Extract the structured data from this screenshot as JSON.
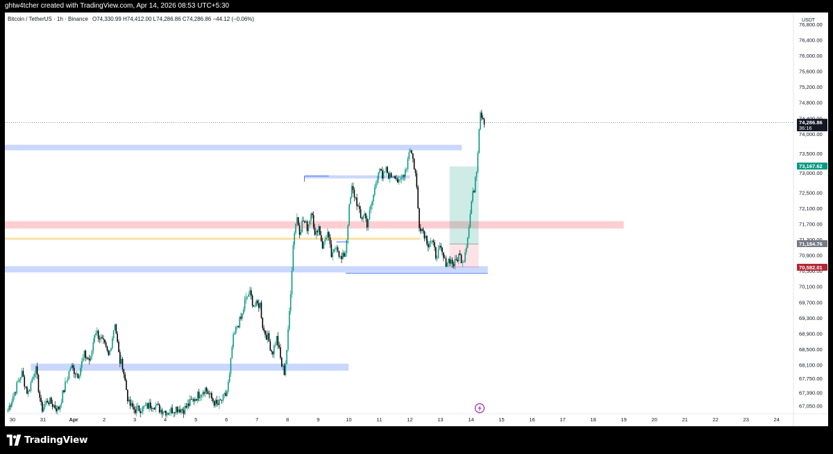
{
  "header": {
    "creator_note": "ghtw4tcher created with TradingView.com, Apr 14, 2026 08:53 UTC+5:30"
  },
  "footer": {
    "brand": "TradingView"
  },
  "chart_data": {
    "type": "candlestick",
    "title": "Bitcoin / TetherUS · 1h · Binance",
    "ohlc_label": "O74,330.99 H74,412.00 L74,286.86 C74,286.86 −44.12 (−0.06%)",
    "currency": "USDT",
    "y_axis": {
      "range": [
        66850,
        77100
      ],
      "ticks": [
        {
          "value": 76800,
          "label": "76,800.00"
        },
        {
          "value": 76400,
          "label": "76,400.00"
        },
        {
          "value": 76000,
          "label": "76,000.00"
        },
        {
          "value": 75600,
          "label": "75,600.00"
        },
        {
          "value": 75200,
          "label": "75,200.00"
        },
        {
          "value": 74800,
          "label": "74,800.00"
        },
        {
          "value": 74400,
          "label": "74,400.00"
        },
        {
          "value": 74000,
          "label": "74,000.00"
        },
        {
          "value": 73500,
          "label": "73,500.00"
        },
        {
          "value": 73000,
          "label": "73,000.00"
        },
        {
          "value": 72500,
          "label": "72,500.00"
        },
        {
          "value": 72100,
          "label": "72,100.00"
        },
        {
          "value": 71700,
          "label": "71,700.00"
        },
        {
          "value": 71300,
          "label": "71,300.00"
        },
        {
          "value": 70900,
          "label": "70,900.00"
        },
        {
          "value": 70500,
          "label": "70,500.00"
        },
        {
          "value": 70100,
          "label": "70,100.00"
        },
        {
          "value": 69700,
          "label": "69,700.00"
        },
        {
          "value": 69300,
          "label": "69,300.00"
        },
        {
          "value": 68900,
          "label": "68,900.00"
        },
        {
          "value": 68500,
          "label": "68,500.00"
        },
        {
          "value": 68100,
          "label": "68,100.00"
        },
        {
          "value": 67750,
          "label": "67,750.00"
        },
        {
          "value": 67390,
          "label": "67,390.00"
        },
        {
          "value": 67050,
          "label": "67,050.00"
        }
      ]
    },
    "x_axis": {
      "unit": "days (Mar 30 – Apr 24, 2026)",
      "range": [
        29.75,
        55.55
      ],
      "ticks": [
        {
          "day": 30,
          "label": "30"
        },
        {
          "day": 31,
          "label": "31"
        },
        {
          "day": 32,
          "label": "Apr",
          "bold": true
        },
        {
          "day": 33,
          "label": "2"
        },
        {
          "day": 34,
          "label": "3"
        },
        {
          "day": 35,
          "label": "4"
        },
        {
          "day": 36,
          "label": "5"
        },
        {
          "day": 37,
          "label": "6"
        },
        {
          "day": 38,
          "label": "7"
        },
        {
          "day": 39,
          "label": "8"
        },
        {
          "day": 40,
          "label": "9"
        },
        {
          "day": 41,
          "label": "10"
        },
        {
          "day": 42,
          "label": "11"
        },
        {
          "day": 43,
          "label": "12"
        },
        {
          "day": 44,
          "label": "13"
        },
        {
          "day": 45,
          "label": "14"
        },
        {
          "day": 46,
          "label": "15"
        },
        {
          "day": 47,
          "label": "16"
        },
        {
          "day": 48,
          "label": "17"
        },
        {
          "day": 49,
          "label": "18"
        },
        {
          "day": 50,
          "label": "19"
        },
        {
          "day": 51,
          "label": "20"
        },
        {
          "day": 52,
          "label": "21"
        },
        {
          "day": 53,
          "label": "22"
        },
        {
          "day": 54,
          "label": "23"
        },
        {
          "day": 55,
          "label": "24"
        }
      ]
    },
    "price_markers": [
      {
        "value": 74286.86,
        "label": "74,286.86",
        "sublabel": "36:16",
        "color": "#131722"
      },
      {
        "value": 73167.62,
        "label": "73,167.62",
        "color": "#089981"
      },
      {
        "value": 71184.76,
        "label": "71,184.76",
        "color": "#787b86"
      },
      {
        "value": 70582.01,
        "label": "70,582.01",
        "color": "#b22833"
      }
    ],
    "colors": {
      "up": "#089981",
      "down": "#000000",
      "background": "#ffffff"
    },
    "close_path": [
      [
        29.85,
        66950
      ],
      [
        30.3,
        67900
      ],
      [
        30.5,
        67350
      ],
      [
        30.75,
        68050
      ],
      [
        30.95,
        66950
      ],
      [
        31.15,
        67200
      ],
      [
        31.5,
        66950
      ],
      [
        31.75,
        67650
      ],
      [
        31.9,
        68050
      ],
      [
        32.15,
        67850
      ],
      [
        32.35,
        68350
      ],
      [
        32.55,
        68200
      ],
      [
        32.7,
        69000
      ],
      [
        32.85,
        68800
      ],
      [
        33.0,
        68600
      ],
      [
        33.15,
        68300
      ],
      [
        33.35,
        69200
      ],
      [
        33.5,
        68200
      ],
      [
        33.6,
        68100
      ],
      [
        33.8,
        67100
      ],
      [
        34.0,
        66950
      ],
      [
        34.3,
        67000
      ],
      [
        34.6,
        67100
      ],
      [
        34.85,
        66950
      ],
      [
        35.1,
        66900
      ],
      [
        35.35,
        67000
      ],
      [
        35.6,
        66950
      ],
      [
        35.9,
        67200
      ],
      [
        36.1,
        67350
      ],
      [
        36.3,
        67500
      ],
      [
        36.5,
        67250
      ],
      [
        36.7,
        67050
      ],
      [
        36.85,
        67200
      ],
      [
        37.0,
        67350
      ],
      [
        37.1,
        67800
      ],
      [
        37.2,
        68700
      ],
      [
        37.35,
        69100
      ],
      [
        37.5,
        69300
      ],
      [
        37.6,
        69700
      ],
      [
        37.75,
        69950
      ],
      [
        37.9,
        69600
      ],
      [
        38.1,
        69650
      ],
      [
        38.2,
        69000
      ],
      [
        38.35,
        68800
      ],
      [
        38.5,
        68400
      ],
      [
        38.65,
        68800
      ],
      [
        38.8,
        68100
      ],
      [
        38.9,
        67900
      ],
      [
        39.0,
        68700
      ],
      [
        39.1,
        70000
      ],
      [
        39.2,
        71400
      ],
      [
        39.3,
        71900
      ],
      [
        39.4,
        71500
      ],
      [
        39.5,
        71800
      ],
      [
        39.65,
        71600
      ],
      [
        39.8,
        72100
      ],
      [
        39.9,
        71300
      ],
      [
        40.0,
        71700
      ],
      [
        40.15,
        71100
      ],
      [
        40.3,
        71500
      ],
      [
        40.45,
        70800
      ],
      [
        40.6,
        71200
      ],
      [
        40.75,
        70750
      ],
      [
        40.9,
        71000
      ],
      [
        41.0,
        72000
      ],
      [
        41.1,
        72600
      ],
      [
        41.25,
        72300
      ],
      [
        41.4,
        71800
      ],
      [
        41.5,
        72000
      ],
      [
        41.6,
        71700
      ],
      [
        41.75,
        72200
      ],
      [
        41.9,
        72800
      ],
      [
        42.0,
        73200
      ],
      [
        42.1,
        72800
      ],
      [
        42.2,
        73100
      ],
      [
        42.35,
        72900
      ],
      [
        42.5,
        73000
      ],
      [
        42.65,
        72700
      ],
      [
        42.8,
        73000
      ],
      [
        42.9,
        73200
      ],
      [
        43.0,
        73700
      ],
      [
        43.1,
        73350
      ],
      [
        43.2,
        72900
      ],
      [
        43.25,
        72300
      ],
      [
        43.3,
        71700
      ],
      [
        43.45,
        71500
      ],
      [
        43.6,
        71200
      ],
      [
        43.7,
        71300
      ],
      [
        43.85,
        70900
      ],
      [
        44.0,
        71050
      ],
      [
        44.15,
        70700
      ],
      [
        44.3,
        70800
      ],
      [
        44.45,
        70650
      ],
      [
        44.6,
        70900
      ],
      [
        44.75,
        70750
      ],
      [
        44.85,
        71200
      ],
      [
        44.95,
        71700
      ],
      [
        45.0,
        72200
      ],
      [
        45.1,
        72600
      ],
      [
        45.15,
        73000
      ],
      [
        45.2,
        73200
      ],
      [
        45.25,
        74000
      ],
      [
        45.3,
        74600
      ],
      [
        45.35,
        74500
      ],
      [
        45.45,
        74300
      ]
    ],
    "horizontal_zones": [
      {
        "name": "demand-zone-top",
        "from": 29.75,
        "to": 44.7,
        "low": 73580,
        "high": 73720,
        "color": "#4f7cff"
      },
      {
        "name": "demand-zone-mid",
        "from": 39.55,
        "to": 43.0,
        "low": 72860,
        "high": 72940,
        "color": "#4f7cff"
      },
      {
        "name": "supply-zone-red",
        "from": 29.75,
        "to": 50.0,
        "low": 71580,
        "high": 71770,
        "color": "#ff5c6c"
      },
      {
        "name": "demand-zone-low",
        "from": 29.75,
        "to": 45.55,
        "low": 70460,
        "high": 70620,
        "color": "#4f7cff"
      },
      {
        "name": "demand-zone-bottom",
        "from": 30.6,
        "to": 41.0,
        "low": 67950,
        "high": 68130,
        "color": "#4f7cff"
      }
    ],
    "horizontal_lines": [
      {
        "name": "equilibrium-line",
        "from": 29.75,
        "to": 43.35,
        "value": 71320,
        "color": "#ffc35a"
      }
    ],
    "position_tool": {
      "from": 44.3,
      "to": 45.25,
      "entry": 71184.76,
      "target": 73167.62,
      "stop": 70582.01
    }
  }
}
